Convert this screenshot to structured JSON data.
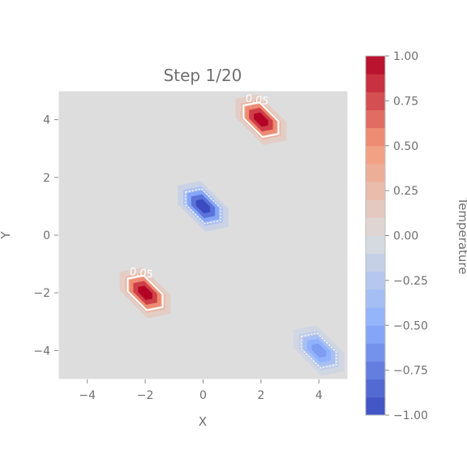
{
  "chart_data": {
    "type": "heatmap",
    "title": "Step 1/20",
    "xlabel": "X",
    "ylabel": "Y",
    "xlim": [
      -5,
      5
    ],
    "ylim": [
      -5,
      5
    ],
    "x_ticks": [
      -4,
      -2,
      0,
      2,
      4
    ],
    "y_ticks": [
      -4,
      -2,
      0,
      2,
      4
    ],
    "x_tick_labels": [
      "−4",
      "−2",
      "0",
      "2",
      "4"
    ],
    "y_tick_labels": [
      "−4",
      "−2",
      "0",
      "2",
      "4"
    ],
    "background_value": 0.0,
    "sources": [
      {
        "x": 2,
        "y": 4,
        "value": 1.0,
        "contour_label": "0.05"
      },
      {
        "x": 0,
        "y": 1,
        "value": -1.0,
        "contour_label": ""
      },
      {
        "x": -2,
        "y": -2,
        "value": 1.0,
        "contour_label": "0.05"
      },
      {
        "x": 4,
        "y": -4,
        "value": -0.6,
        "contour_label": ""
      }
    ],
    "colorbar": {
      "label": "Temperature",
      "range": [
        -1,
        1
      ],
      "colormap": "coolwarm",
      "ticks": [
        1.0,
        0.75,
        0.5,
        0.25,
        0.0,
        -0.25,
        -0.5,
        -0.75,
        -1.0
      ],
      "tick_labels": [
        "1.00",
        "0.75",
        "0.50",
        "0.25",
        "0.00",
        "−0.25",
        "−0.50",
        "−0.75",
        "−1.00"
      ]
    },
    "grid": false
  }
}
